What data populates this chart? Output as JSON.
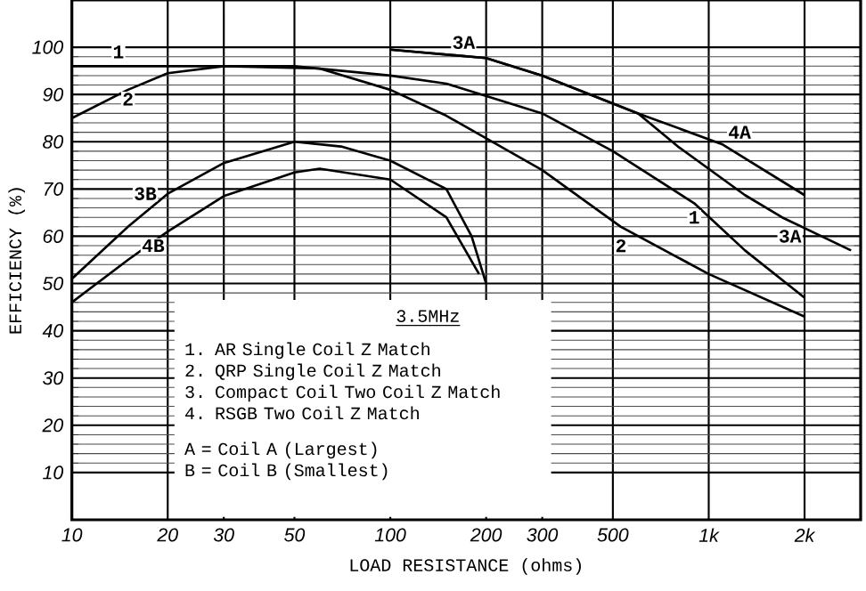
{
  "chart_data": {
    "type": "line",
    "xlabel": "LOAD RESISTANCE (ohms)",
    "ylabel": "EFFICIENCY (%)",
    "log": "x",
    "xlim": [
      10,
      3000
    ],
    "xticks": [
      10,
      20,
      30,
      50,
      100,
      200,
      300,
      500,
      {
        "value": 1000,
        "label": "1k"
      },
      {
        "value": 2000,
        "label": "2k"
      }
    ],
    "ylim": [
      0,
      110
    ],
    "yticks": [
      10,
      20,
      30,
      40,
      50,
      60,
      70,
      80,
      90,
      100
    ],
    "grid": true,
    "marker": "none",
    "line_style": "solid",
    "series": [
      {
        "color": "#000000",
        "x": [
          10,
          50,
          100,
          150,
          300,
          500,
          900,
          1300,
          2000
        ],
        "values": [
          96,
          96,
          94,
          92.3,
          86,
          78,
          67,
          57,
          47
        ]
      },
      {
        "color": "#000000",
        "x": [
          10,
          15,
          20,
          30,
          60,
          100,
          150,
          300,
          530,
          1000,
          2000
        ],
        "values": [
          85,
          91,
          94.5,
          96,
          95.5,
          91,
          85.5,
          74,
          62,
          52,
          43
        ]
      },
      {
        "color": "#000000",
        "x": [
          100,
          200,
          300,
          600,
          800,
          1300,
          1700,
          2800
        ],
        "values": [
          99.5,
          97.7,
          94,
          86,
          79,
          68.7,
          64,
          57
        ]
      },
      {
        "color": "#000000",
        "x": [
          100,
          200,
          300,
          600,
          1100,
          2000
        ],
        "values": [
          99.5,
          97.7,
          94,
          86,
          79.5,
          68.7
        ]
      },
      {
        "color": "#000000",
        "x": [
          10,
          15,
          20,
          30,
          50,
          70,
          100,
          150,
          180,
          200
        ],
        "values": [
          51,
          62,
          69,
          75.5,
          80,
          79,
          76,
          70,
          60,
          50
        ]
      },
      {
        "color": "#000000",
        "x": [
          10,
          15,
          20,
          30,
          50,
          60,
          100,
          150,
          190
        ],
        "values": [
          46,
          55,
          61,
          68.5,
          73.5,
          74.3,
          72,
          64,
          52
        ]
      }
    ],
    "annotations": [
      {
        "text": "1",
        "x": 14,
        "y": 99
      },
      {
        "text": "2",
        "x": 15,
        "y": 89
      },
      {
        "text": "3A",
        "x": 170,
        "y": 101
      },
      {
        "text": "3B",
        "x": 17,
        "y": 69
      },
      {
        "text": "4B",
        "x": 18,
        "y": 58
      },
      {
        "text": "1",
        "x": 900,
        "y": 64
      },
      {
        "text": "2",
        "x": 530,
        "y": 58
      },
      {
        "text": "4A",
        "x": 1250,
        "y": 82
      },
      {
        "text": "3A",
        "x": 1800,
        "y": 60
      },
      "3.5MHz",
      "1. AR Single Coil Z Match",
      "2. QRP Single Coil Z Match",
      "3. Compact Coil Two Coil Z Match",
      "4. RSGB Two Coil Z Match",
      "A = Coil A (Largest)",
      "B = Coil B (Smallest)"
    ]
  }
}
